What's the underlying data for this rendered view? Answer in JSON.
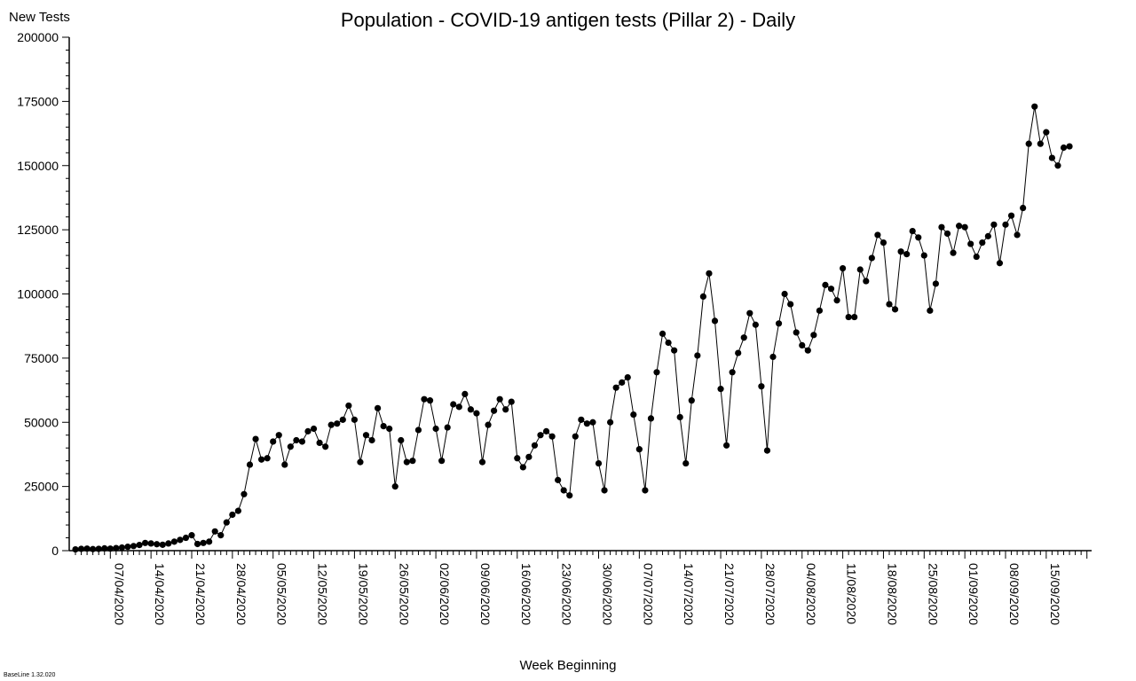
{
  "chart_data": {
    "type": "line",
    "title": "Population - COVID-19 antigen tests (Pillar 2) - Daily",
    "ylabel": "New Tests",
    "xlabel": "Week Beginning",
    "ylim": [
      0,
      200000
    ],
    "y_ticks": [
      "0",
      "25000",
      "50000",
      "75000",
      "100000",
      "125000",
      "150000",
      "175000",
      "200000"
    ],
    "x_tick_labels": [
      "07/04/2020",
      "14/04/2020",
      "21/04/2020",
      "28/04/2020",
      "05/05/2020",
      "12/05/2020",
      "19/05/2020",
      "26/05/2020",
      "02/06/2020",
      "09/06/2020",
      "16/06/2020",
      "23/06/2020",
      "30/06/2020",
      "07/07/2020",
      "14/07/2020",
      "21/07/2020",
      "28/07/2020",
      "04/08/2020",
      "11/08/2020",
      "18/08/2020",
      "25/08/2020",
      "01/09/2020",
      "08/09/2020",
      "15/09/2020"
    ],
    "start_date": "2020-04-01",
    "grid": false,
    "marker": "circle",
    "series": [
      {
        "values": [
          500,
          700,
          800,
          600,
          700,
          900,
          800,
          1000,
          1200,
          1500,
          1800,
          2200,
          3000,
          2800,
          2500,
          2300,
          2800,
          3500,
          4200,
          5000,
          6000,
          2600,
          3000,
          3500,
          7500,
          6000,
          11000,
          14000,
          15500,
          22000,
          33500,
          43500,
          35500,
          36000,
          42500,
          45000,
          33500,
          40500,
          43000,
          42500,
          46500,
          47500,
          42000,
          40500,
          49000,
          49500,
          51000,
          56500,
          51000,
          34500,
          45000,
          43000,
          55500,
          48500,
          47500,
          25000,
          43000,
          34500,
          35000,
          47000,
          59000,
          58500,
          47500,
          35000,
          48000,
          57000,
          56000,
          61000,
          55000,
          53500,
          34500,
          49000,
          54500,
          59000,
          55000,
          58000,
          36000,
          32500,
          36500,
          41000,
          45000,
          46500,
          44500,
          27500,
          23500,
          21500,
          44500,
          51000,
          49500,
          50000,
          34000,
          23500,
          50000,
          63500,
          65500,
          67500,
          53000,
          39500,
          23500,
          51500,
          69500,
          84500,
          81000,
          78000,
          52000,
          34000,
          58500,
          76000,
          99000,
          108000,
          89500,
          63000,
          41000,
          69500,
          77000,
          83000,
          92500,
          88000,
          64000,
          39000,
          75500,
          88500,
          100000,
          96000,
          85000,
          80000,
          78000,
          84000,
          93500,
          103500,
          102000,
          97500,
          110000,
          91000,
          91000,
          109500,
          105000,
          114000,
          123000,
          120000,
          96000,
          94000,
          116500,
          115500,
          124500,
          122000,
          115000,
          93500,
          104000,
          126000,
          123500,
          116000,
          126500,
          126000,
          119500,
          114500,
          120000,
          122500,
          127000,
          112000,
          127000,
          130500,
          123000,
          133500,
          158500,
          173000,
          158500,
          163000,
          153000,
          150000,
          157000,
          157500
        ]
      }
    ]
  },
  "footer": {
    "version": "BaseLine 1.32.020"
  }
}
